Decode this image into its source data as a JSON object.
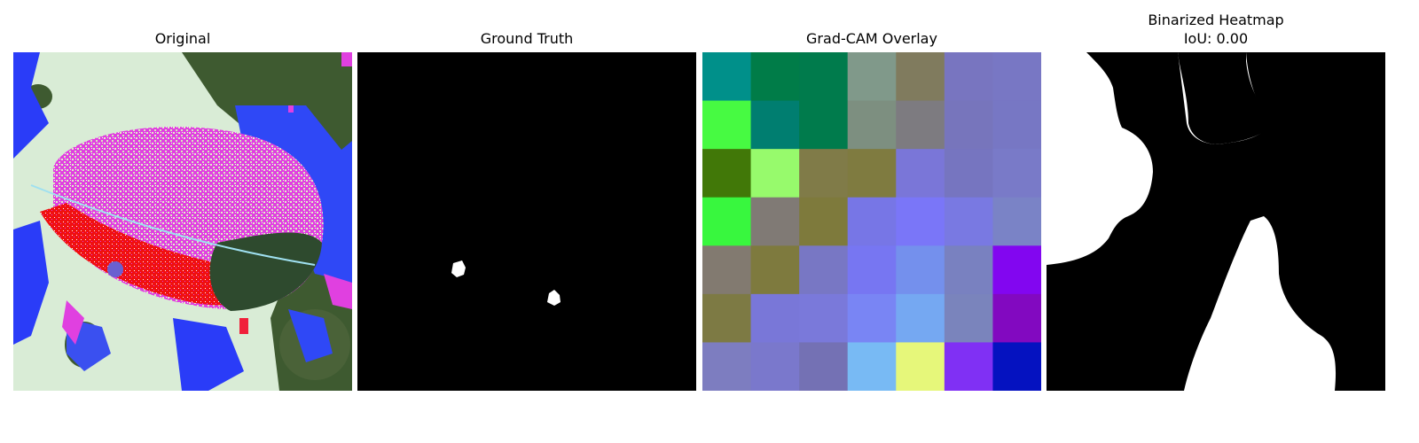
{
  "panels": {
    "original": {
      "title": "Original"
    },
    "ground_truth": {
      "title": "Ground Truth"
    },
    "gradcam": {
      "title": "Grad-CAM Overlay",
      "grid_rows": 7,
      "grid_cols": 7,
      "cell_colors": [
        [
          "#00908a",
          "#007c48",
          "#007b4c",
          "#80998a",
          "#807b5e",
          "#7875c0",
          "#7877c4"
        ],
        [
          "#47fa42",
          "#007e70",
          "#007b4c",
          "#7d8f80",
          "#7d7b80",
          "#7775bc",
          "#7777c4"
        ],
        [
          "#417808",
          "#97fa6c",
          "#807b48",
          "#7f7b40",
          "#7a76d8",
          "#7675c0",
          "#797ac8"
        ],
        [
          "#38f73e",
          "#807a75",
          "#7e7a3c",
          "#7776e6",
          "#7a76f8",
          "#7979e2",
          "#7a83c6"
        ],
        [
          "#827a70",
          "#7e7a3e",
          "#7877c4",
          "#7776f2",
          "#7490ed",
          "#7981c0",
          "#8206f0"
        ],
        [
          "#7d7a44",
          "#7977d8",
          "#7a79da",
          "#7985f4",
          "#75a8f2",
          "#7a84bc",
          "#8209c0"
        ],
        [
          "#7d7dc0",
          "#7a78cc",
          "#7471b4",
          "#78baf4",
          "#e6f77a",
          "#8030f4",
          "#0512c0"
        ]
      ]
    },
    "binarized": {
      "title_line1": "Binarized Heatmap",
      "title_line2": "IoU: 0.00"
    }
  },
  "colors": {
    "background": "#ffffff",
    "mask": "#000000",
    "foreground": "#ffffff"
  }
}
